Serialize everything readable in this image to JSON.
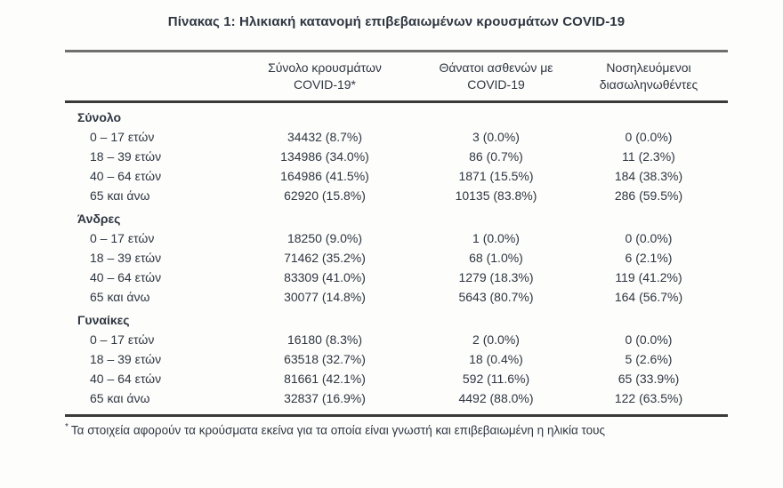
{
  "title": "Πίνακας 1: Ηλικιακή κατανομή επιβεβαιωμένων κρουσμάτων COVID-19",
  "colors": {
    "text": "#2e3640",
    "border_top": "#6f6f6f",
    "border_heavy": "#3a3a3a",
    "background": "#fdfdfc"
  },
  "table": {
    "columns": [
      {
        "line1": "",
        "line2": ""
      },
      {
        "line1": "Σύνολο κρουσμάτων",
        "line2": "COVID-19*"
      },
      {
        "line1": "Θάνατοι ασθενών με",
        "line2": "COVID-19"
      },
      {
        "line1": "Νοσηλευόμενοι",
        "line2": "διασωληνωθέντες"
      }
    ],
    "sections": [
      {
        "label": "Σύνολο",
        "rows": [
          {
            "age": "0 – 17 ετών",
            "cases": "34432 (8.7%)",
            "deaths": "3 (0.0%)",
            "intubated": "0 (0.0%)"
          },
          {
            "age": "18 – 39 ετών",
            "cases": "134986 (34.0%)",
            "deaths": "86 (0.7%)",
            "intubated": "11 (2.3%)"
          },
          {
            "age": "40 – 64 ετών",
            "cases": "164986 (41.5%)",
            "deaths": "1871 (15.5%)",
            "intubated": "184 (38.3%)"
          },
          {
            "age": "65 και άνω",
            "cases": "62920 (15.8%)",
            "deaths": "10135 (83.8%)",
            "intubated": "286 (59.5%)"
          }
        ]
      },
      {
        "label": "Άνδρες",
        "rows": [
          {
            "age": "0 – 17 ετών",
            "cases": "18250 (9.0%)",
            "deaths": "1 (0.0%)",
            "intubated": "0 (0.0%)"
          },
          {
            "age": "18 – 39 ετών",
            "cases": "71462 (35.2%)",
            "deaths": "68 (1.0%)",
            "intubated": "6 (2.1%)"
          },
          {
            "age": "40 – 64 ετών",
            "cases": "83309 (41.0%)",
            "deaths": "1279 (18.3%)",
            "intubated": "119 (41.2%)"
          },
          {
            "age": "65 και άνω",
            "cases": "30077 (14.8%)",
            "deaths": "5643 (80.7%)",
            "intubated": "164 (56.7%)"
          }
        ]
      },
      {
        "label": "Γυναίκες",
        "rows": [
          {
            "age": "0 – 17 ετών",
            "cases": "16180 (8.3%)",
            "deaths": "2 (0.0%)",
            "intubated": "0 (0.0%)"
          },
          {
            "age": "18 – 39 ετών",
            "cases": "63518 (32.7%)",
            "deaths": "18 (0.4%)",
            "intubated": "5 (2.6%)"
          },
          {
            "age": "40 – 64 ετών",
            "cases": "81661 (42.1%)",
            "deaths": "592 (11.6%)",
            "intubated": "65 (33.9%)"
          },
          {
            "age": "65 και άνω",
            "cases": "32837 (16.9%)",
            "deaths": "4492 (88.0%)",
            "intubated": "122 (63.5%)"
          }
        ]
      }
    ]
  },
  "footnote": {
    "marker": "*",
    "text": "Τα στοιχεία αφορούν τα κρούσματα εκείνα για τα οποία είναι γνωστή και επιβεβαιωμένη η ηλικία τους"
  }
}
